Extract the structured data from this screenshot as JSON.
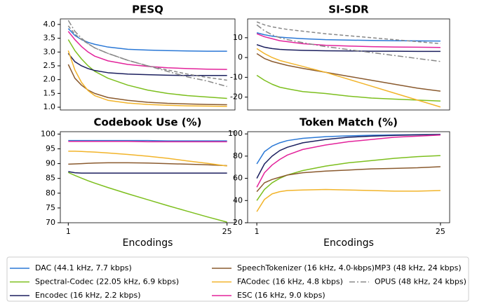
{
  "chart_data": [
    {
      "type": "line",
      "title": "PESQ",
      "x": [
        1,
        2,
        3,
        4,
        5,
        7,
        10,
        13,
        16,
        19,
        22,
        25
      ],
      "xlim": [
        -0.2,
        26.2
      ],
      "ylim": [
        0.9,
        4.2
      ],
      "yticks": [
        {
          "value": 1.0,
          "label": "1.0"
        },
        1.5,
        {
          "value": 2.0,
          "label": "2.0"
        },
        2.5,
        {
          "value": 3.0,
          "label": "3.0"
        },
        3.5,
        {
          "value": 4.0,
          "label": "4.0"
        }
      ],
      "series": [
        {
          "name": "DAC (44.1 kHz, 7.7 kbps)",
          "color": "#2a78d6",
          "values": [
            3.85,
            3.6,
            3.45,
            3.35,
            3.28,
            3.18,
            3.1,
            3.07,
            3.05,
            3.04,
            3.03,
            3.03
          ]
        },
        {
          "name": "Spectral-Codec (22.05 kHz, 6.9 kbps)",
          "color": "#7dbf1e",
          "values": [
            3.45,
            3.05,
            2.75,
            2.5,
            2.3,
            2.05,
            1.8,
            1.62,
            1.5,
            1.42,
            1.37,
            1.32
          ]
        },
        {
          "name": "Encodec (16 kHz, 2.2 kbps)",
          "color": "#1b1f5e",
          "values": [
            2.95,
            2.65,
            2.5,
            2.4,
            2.33,
            2.25,
            2.2,
            2.18,
            2.16,
            2.15,
            2.15,
            2.15
          ]
        },
        {
          "name": "SpeechTokenizer (16 kHz, 4.0 kbps)",
          "color": "#8a5a2e",
          "values": [
            2.55,
            2.05,
            1.8,
            1.62,
            1.5,
            1.35,
            1.25,
            1.18,
            1.14,
            1.12,
            1.1,
            1.09
          ]
        },
        {
          "name": "FACodec (16 kHz, 4.8 kbps)",
          "color": "#f2b42a",
          "values": [
            3.05,
            2.35,
            1.9,
            1.6,
            1.42,
            1.25,
            1.15,
            1.1,
            1.07,
            1.05,
            1.04,
            1.03
          ]
        },
        {
          "name": "ESC (16 kHz, 9.0 kbps)",
          "color": "#e3239b",
          "values": [
            3.75,
            3.45,
            3.2,
            3.0,
            2.85,
            2.68,
            2.55,
            2.48,
            2.43,
            2.4,
            2.38,
            2.37
          ]
        },
        {
          "name": "MP3 (48 kHz, 24 kbps)",
          "color": "#888888",
          "linestyle": "dashed",
          "values": [
            3.95,
            3.65,
            3.45,
            3.3,
            3.15,
            2.95,
            2.7,
            2.5,
            2.35,
            2.2,
            2.08,
            1.98
          ]
        },
        {
          "name": "OPUS (48 kHz, 24 kbps)",
          "color": "#888888",
          "linestyle": "dashdot",
          "values": [
            4.15,
            3.75,
            3.5,
            3.3,
            3.15,
            2.95,
            2.7,
            2.5,
            2.3,
            2.1,
            1.95,
            1.75
          ]
        }
      ]
    },
    {
      "type": "line",
      "title": "SI-SDR",
      "x": [
        1,
        2,
        3,
        4,
        5,
        7,
        10,
        13,
        16,
        19,
        22,
        25
      ],
      "xlim": [
        -0.2,
        26.2
      ],
      "ylim": [
        -26.5,
        19.5
      ],
      "yticks": [
        -20,
        -10,
        0,
        10
      ],
      "series": [
        {
          "name": "DAC (44.1 kHz, 7.7 kbps)",
          "color": "#2a78d6",
          "values": [
            12.5,
            11.5,
            10.8,
            10.3,
            10,
            9.5,
            9,
            8.8,
            8.6,
            8.5,
            8.4,
            8.3
          ]
        },
        {
          "name": "Spectral-Codec (22.05 kHz, 6.9 kbps)",
          "color": "#7dbf1e",
          "values": [
            -9,
            -11.5,
            -13.5,
            -15,
            -15.8,
            -17.2,
            -18.2,
            -19.5,
            -20.5,
            -21,
            -21.5,
            -22
          ]
        },
        {
          "name": "Encodec (16 kHz, 2.2 kbps)",
          "color": "#1b1f5e",
          "values": [
            6.5,
            5.2,
            4.5,
            4.1,
            3.9,
            3.6,
            3.4,
            3.3,
            3.2,
            3.2,
            3.1,
            3.1
          ]
        },
        {
          "name": "SpeechTokenizer (16 kHz, 4.0 kbps)",
          "color": "#8a5a2e",
          "values": [
            2,
            -0.5,
            -2,
            -3,
            -4,
            -5.5,
            -7.5,
            -9.5,
            -11.5,
            -13.5,
            -15.5,
            -17
          ]
        },
        {
          "name": "FACodec (16 kHz, 4.8 kbps)",
          "color": "#f2b42a",
          "values": [
            4.5,
            2,
            0,
            -1.5,
            -2.5,
            -4.5,
            -7.5,
            -11,
            -14.5,
            -18,
            -21.5,
            -25
          ]
        },
        {
          "name": "ESC (16 kHz, 9.0 kbps)",
          "color": "#e3239b",
          "values": [
            12,
            10.5,
            9.5,
            8.5,
            8,
            7,
            6.2,
            5.8,
            5.5,
            5.3,
            5.2,
            5.1
          ]
        },
        {
          "name": "MP3 (48 kHz, 24 kbps)",
          "color": "#888888",
          "linestyle": "dashed",
          "values": [
            18,
            16.5,
            15.5,
            14.8,
            14.2,
            13.3,
            12,
            11,
            10,
            9,
            8,
            7
          ]
        },
        {
          "name": "OPUS (48 kHz, 24 kbps)",
          "color": "#888888",
          "linestyle": "dashdot",
          "values": [
            16.5,
            13.5,
            11.5,
            10,
            9,
            7.5,
            5.5,
            4,
            2.5,
            1,
            -0.5,
            -2
          ]
        }
      ]
    },
    {
      "type": "line",
      "title": "Codebook Use (%)",
      "xlabel": "Encodings",
      "x": [
        1,
        2,
        3,
        4,
        5,
        7,
        10,
        13,
        16,
        19,
        22,
        25
      ],
      "xlim": [
        -0.2,
        26.2
      ],
      "xticks": [
        1,
        25
      ],
      "ylim": [
        70,
        100.8
      ],
      "yticks": [
        70,
        75,
        80,
        85,
        90,
        95,
        100
      ],
      "series": [
        {
          "name": "DAC (44.1 kHz, 7.7 kbps)",
          "color": "#2a78d6",
          "values": [
            97.8,
            97.8,
            97.8,
            97.8,
            97.8,
            97.8,
            97.8,
            97.8,
            97.7,
            97.7,
            97.7,
            97.7
          ]
        },
        {
          "name": "Spectral-Codec (22.05 kHz, 6.9 kbps)",
          "color": "#7dbf1e",
          "values": [
            87,
            86,
            85.1,
            84.2,
            83.4,
            81.9,
            79.8,
            77.8,
            75.8,
            73.9,
            72,
            70.2
          ]
        },
        {
          "name": "Encodec (16 kHz, 2.2 kbps)",
          "color": "#1b1f5e",
          "values": [
            87.3,
            86.9,
            86.8,
            86.8,
            86.8,
            86.8,
            86.8,
            86.8,
            86.8,
            86.8,
            86.8,
            86.8
          ]
        },
        {
          "name": "SpeechTokenizer (16 kHz, 4.0 kbps)",
          "color": "#8a5a2e",
          "values": [
            89.8,
            89.9,
            90,
            90.1,
            90.2,
            90.3,
            90.3,
            90.2,
            90,
            89.8,
            89.6,
            89.3
          ]
        },
        {
          "name": "FACodec (16 kHz, 4.8 kbps)",
          "color": "#f2b42a",
          "values": [
            94.2,
            94.2,
            94.1,
            94,
            93.9,
            93.6,
            93.1,
            92.5,
            91.8,
            90.9,
            90.1,
            89.2
          ]
        },
        {
          "name": "ESC (16 kHz, 9.0 kbps)",
          "color": "#e3239b",
          "values": [
            97.5,
            97.5,
            97.5,
            97.5,
            97.5,
            97.5,
            97.5,
            97.4,
            97.4,
            97.4,
            97.4,
            97.4
          ]
        }
      ]
    },
    {
      "type": "line",
      "title": "Token Match (%)",
      "xlabel": "Encodings",
      "x": [
        1,
        2,
        3,
        4,
        5,
        7,
        10,
        13,
        16,
        19,
        22,
        25
      ],
      "xlim": [
        -0.2,
        26.2
      ],
      "xticks": [
        1,
        25
      ],
      "ylim": [
        20,
        102
      ],
      "yticks": [
        20,
        40,
        60,
        80,
        100
      ],
      "series": [
        {
          "name": "DAC (44.1 kHz, 7.7 kbps)",
          "color": "#2a78d6",
          "values": [
            73,
            84,
            89,
            92,
            94,
            96,
            97.5,
            98.3,
            98.8,
            99.1,
            99.3,
            99.5
          ]
        },
        {
          "name": "Spectral-Codec (22.05 kHz, 6.9 kbps)",
          "color": "#7dbf1e",
          "values": [
            40,
            50,
            56,
            60,
            63,
            67,
            71,
            74,
            76,
            78,
            79.5,
            80.5
          ]
        },
        {
          "name": "Encodec (16 kHz, 2.2 kbps)",
          "color": "#1b1f5e",
          "values": [
            60,
            73,
            80,
            85,
            88,
            92,
            95,
            97,
            98,
            98.7,
            99.2,
            99.5
          ]
        },
        {
          "name": "SpeechTokenizer (16 kHz, 4.0 kbps)",
          "color": "#8a5a2e",
          "values": [
            48,
            56,
            59,
            61,
            63,
            65,
            66.5,
            67.5,
            68.5,
            69,
            69.5,
            70.5
          ]
        },
        {
          "name": "FACodec (16 kHz, 4.8 kbps)",
          "color": "#f2b42a",
          "values": [
            30,
            41,
            46,
            48,
            49,
            49.5,
            50,
            49.5,
            49,
            48.5,
            48.5,
            49
          ]
        },
        {
          "name": "ESC (16 kHz, 9.0 kbps)",
          "color": "#e3239b",
          "values": [
            52,
            65,
            72,
            77,
            81,
            86,
            90,
            93,
            95,
            97,
            98,
            99
          ]
        }
      ]
    }
  ]
}
